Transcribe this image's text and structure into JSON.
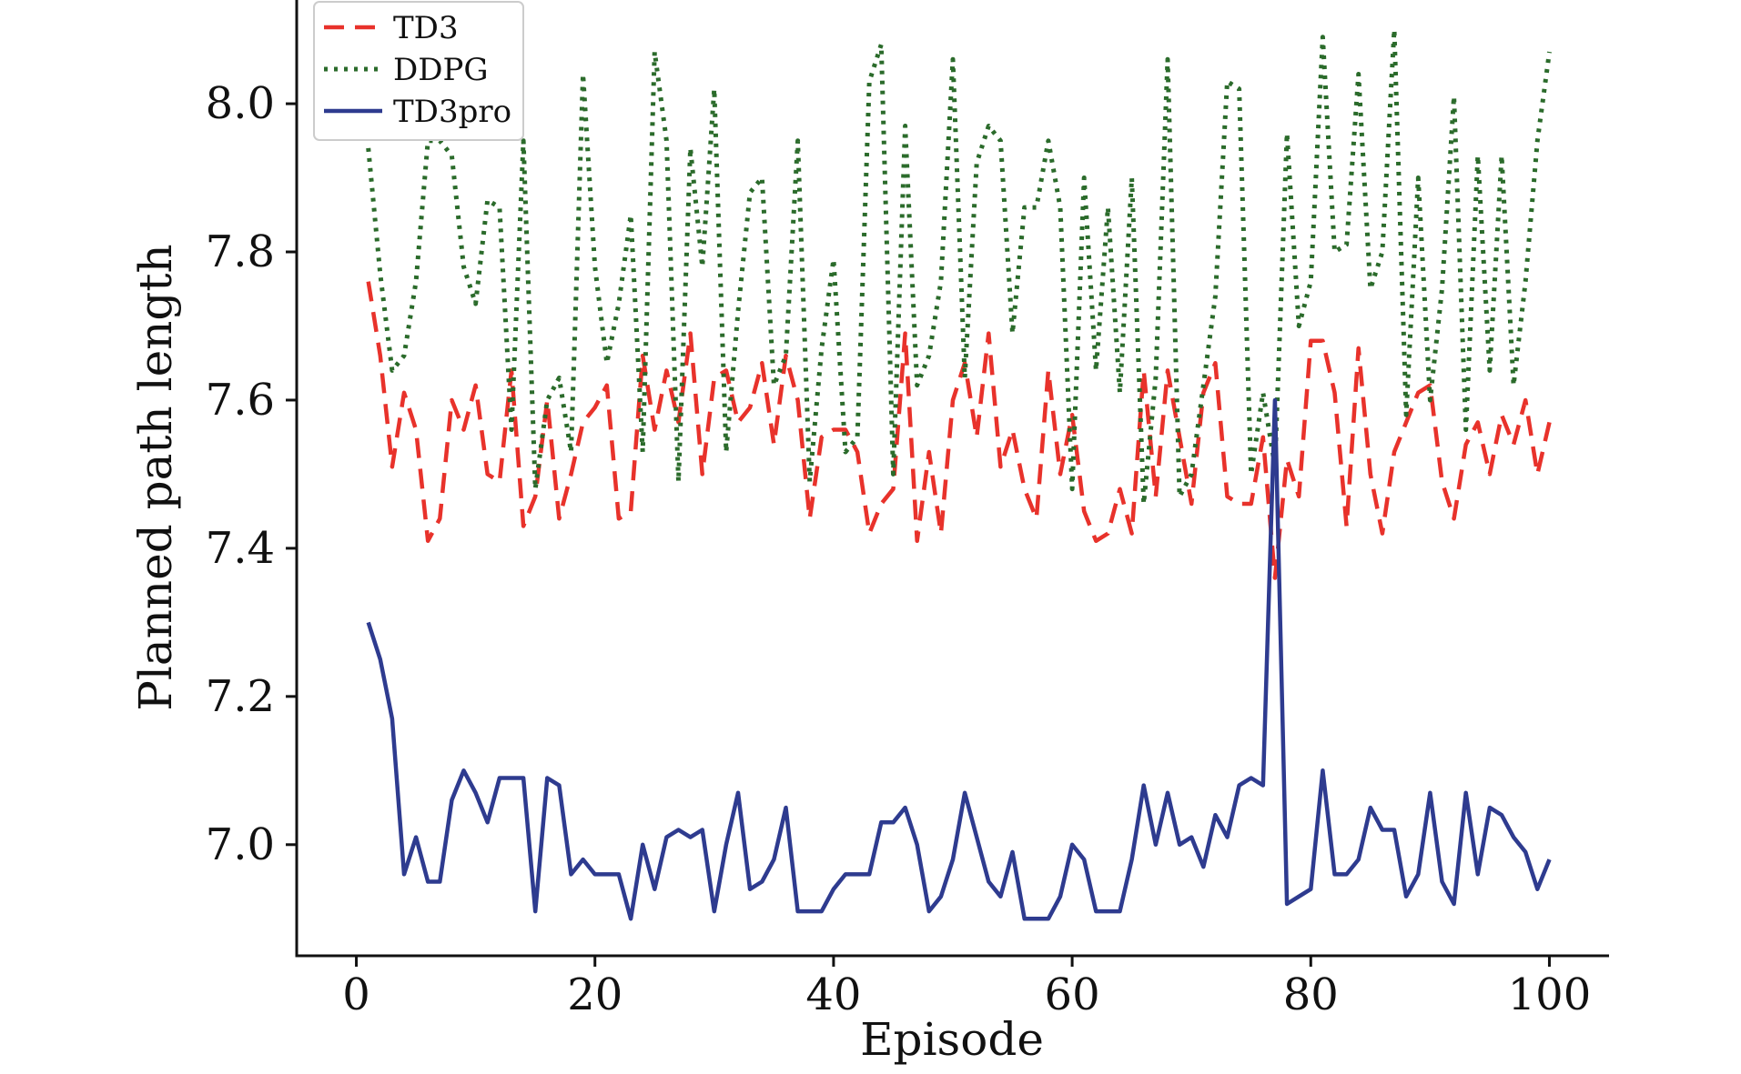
{
  "chart_data": {
    "type": "line",
    "xlabel": "Episode",
    "ylabel": "Planned path length",
    "xlim": [
      -5,
      105
    ],
    "ylim": [
      6.85,
      8.14
    ],
    "xticks": [
      0,
      20,
      40,
      60,
      80,
      100
    ],
    "xtick_labels": [
      "0",
      "20",
      "40",
      "60",
      "80",
      "100"
    ],
    "yticks": [
      7.0,
      7.2,
      7.4,
      7.6,
      7.8,
      8.0
    ],
    "ytick_labels": [
      "7.0",
      "7.2",
      "7.4",
      "7.6",
      "7.8",
      "8.0"
    ],
    "grid": false,
    "legend_position": "top-left",
    "x": [
      1,
      2,
      3,
      4,
      5,
      6,
      7,
      8,
      9,
      10,
      11,
      12,
      13,
      14,
      15,
      16,
      17,
      18,
      19,
      20,
      21,
      22,
      23,
      24,
      25,
      26,
      27,
      28,
      29,
      30,
      31,
      32,
      33,
      34,
      35,
      36,
      37,
      38,
      39,
      40,
      41,
      42,
      43,
      44,
      45,
      46,
      47,
      48,
      49,
      50,
      51,
      52,
      53,
      54,
      55,
      56,
      57,
      58,
      59,
      60,
      61,
      62,
      63,
      64,
      65,
      66,
      67,
      68,
      69,
      70,
      71,
      72,
      73,
      74,
      75,
      76,
      77,
      78,
      79,
      80,
      81,
      82,
      83,
      84,
      85,
      86,
      87,
      88,
      89,
      90,
      91,
      92,
      93,
      94,
      95,
      96,
      97,
      98,
      99,
      100
    ],
    "series": [
      {
        "name": "TD3",
        "color": "#e8322b",
        "style": "dashed",
        "values": [
          7.76,
          7.66,
          7.51,
          7.61,
          7.56,
          7.41,
          7.44,
          7.6,
          7.56,
          7.62,
          7.5,
          7.49,
          7.64,
          7.43,
          7.47,
          7.6,
          7.44,
          7.5,
          7.57,
          7.59,
          7.62,
          7.44,
          7.45,
          7.66,
          7.56,
          7.64,
          7.57,
          7.69,
          7.5,
          7.63,
          7.64,
          7.57,
          7.59,
          7.65,
          7.54,
          7.66,
          7.6,
          7.44,
          7.55,
          7.56,
          7.56,
          7.53,
          7.42,
          7.46,
          7.48,
          7.69,
          7.41,
          7.53,
          7.42,
          7.6,
          7.65,
          7.55,
          7.69,
          7.51,
          7.56,
          7.48,
          7.44,
          7.64,
          7.5,
          7.58,
          7.45,
          7.41,
          7.42,
          7.48,
          7.42,
          7.64,
          7.47,
          7.64,
          7.55,
          7.46,
          7.61,
          7.65,
          7.47,
          7.46,
          7.46,
          7.55,
          7.36,
          7.52,
          7.47,
          7.68,
          7.68,
          7.61,
          7.43,
          7.67,
          7.5,
          7.42,
          7.53,
          7.57,
          7.61,
          7.62,
          7.49,
          7.44,
          7.54,
          7.57,
          7.5,
          7.58,
          7.54,
          7.6,
          7.5,
          7.57
        ]
      },
      {
        "name": "DDPG",
        "color": "#2b6b2b",
        "style": "dotted",
        "values": [
          7.94,
          7.77,
          7.64,
          7.66,
          7.76,
          7.95,
          7.95,
          7.93,
          7.78,
          7.73,
          7.87,
          7.86,
          7.56,
          7.95,
          7.48,
          7.6,
          7.63,
          7.53,
          8.04,
          7.78,
          7.65,
          7.73,
          7.85,
          7.53,
          8.07,
          7.95,
          7.49,
          7.94,
          7.78,
          8.02,
          7.53,
          7.72,
          7.88,
          7.9,
          7.62,
          7.66,
          7.95,
          7.49,
          7.67,
          7.79,
          7.53,
          7.55,
          8.03,
          8.08,
          7.5,
          7.97,
          7.62,
          7.66,
          7.76,
          8.06,
          7.63,
          7.92,
          7.97,
          7.95,
          7.69,
          7.86,
          7.86,
          7.95,
          7.86,
          7.48,
          7.9,
          7.64,
          7.86,
          7.61,
          7.9,
          7.46,
          7.63,
          8.06,
          7.47,
          7.5,
          7.62,
          7.74,
          8.03,
          8.02,
          7.5,
          7.61,
          7.51,
          7.96,
          7.7,
          7.76,
          8.09,
          7.8,
          7.81,
          8.04,
          7.75,
          7.8,
          8.1,
          7.58,
          7.9,
          7.6,
          7.75,
          8.01,
          7.56,
          7.93,
          7.64,
          7.93,
          7.62,
          7.76,
          7.95,
          8.07
        ]
      },
      {
        "name": "TD3pro",
        "color": "#2e3b8f",
        "style": "solid",
        "values": [
          7.3,
          7.25,
          7.17,
          6.96,
          7.01,
          6.95,
          6.95,
          7.06,
          7.1,
          7.07,
          7.03,
          7.09,
          7.09,
          7.09,
          6.91,
          7.09,
          7.08,
          6.96,
          6.98,
          6.96,
          6.96,
          6.96,
          6.9,
          7.0,
          6.94,
          7.01,
          7.02,
          7.01,
          7.02,
          6.91,
          7.0,
          7.07,
          6.94,
          6.95,
          6.98,
          7.05,
          6.91,
          6.91,
          6.91,
          6.94,
          6.96,
          6.96,
          6.96,
          7.03,
          7.03,
          7.05,
          7.0,
          6.91,
          6.93,
          6.98,
          7.07,
          7.01,
          6.95,
          6.93,
          6.99,
          6.9,
          6.9,
          6.9,
          6.93,
          7.0,
          6.98,
          6.91,
          6.91,
          6.91,
          6.98,
          7.08,
          7.0,
          7.07,
          7.0,
          7.01,
          6.97,
          7.04,
          7.01,
          7.08,
          7.09,
          7.08,
          7.6,
          6.92,
          6.93,
          6.94,
          7.1,
          6.96,
          6.96,
          6.98,
          7.05,
          7.02,
          7.02,
          6.93,
          6.96,
          7.07,
          6.95,
          6.92,
          7.07,
          6.96,
          7.05,
          7.04,
          7.01,
          6.99,
          6.94,
          6.98
        ]
      }
    ]
  }
}
